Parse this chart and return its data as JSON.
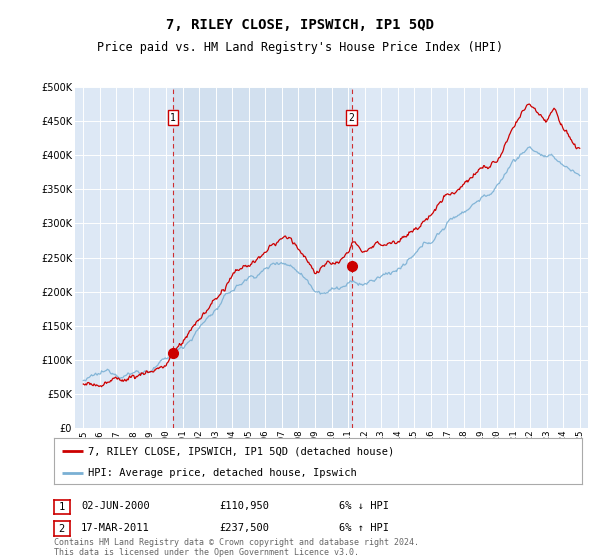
{
  "title": "7, RILEY CLOSE, IPSWICH, IP1 5QD",
  "subtitle": "Price paid vs. HM Land Registry's House Price Index (HPI)",
  "ylim": [
    0,
    500000
  ],
  "yticks": [
    0,
    50000,
    100000,
    150000,
    200000,
    250000,
    300000,
    350000,
    400000,
    450000,
    500000
  ],
  "sale1_year": 2000.42,
  "sale1_price": 110950,
  "sale1_label": "1",
  "sale2_year": 2011.21,
  "sale2_price": 237500,
  "sale2_label": "2",
  "legend_line1": "7, RILEY CLOSE, IPSWICH, IP1 5QD (detached house)",
  "legend_line2": "HPI: Average price, detached house, Ipswich",
  "footer": "Contains HM Land Registry data © Crown copyright and database right 2024.\nThis data is licensed under the Open Government Licence v3.0.",
  "line_color_red": "#cc0000",
  "line_color_blue": "#7ab0d4",
  "vline_color": "#cc0000",
  "plot_bg": "#ddeeff",
  "highlight_bg": "#ccddf0"
}
